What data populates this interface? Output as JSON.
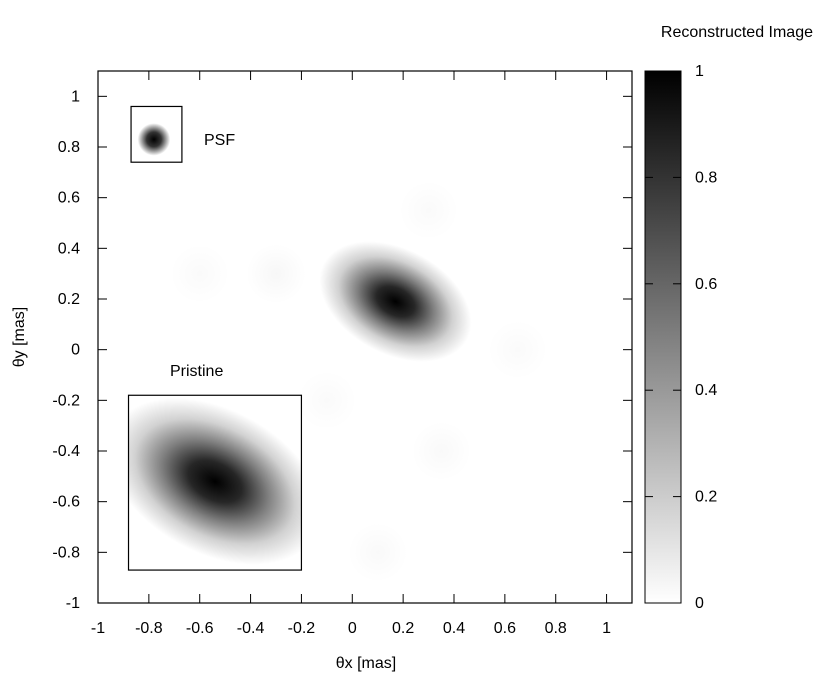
{
  "chart_data": {
    "type": "heatmap",
    "title": "Reconstructed Image",
    "xlabel": "θx [mas]",
    "ylabel": "θy [mas]",
    "xlim": [
      -1,
      1.1
    ],
    "ylim": [
      -1,
      1.1
    ],
    "x_ticks": [
      -1,
      -0.8,
      -0.6,
      -0.4,
      -0.2,
      0,
      0.2,
      0.4,
      0.6,
      0.8,
      1
    ],
    "y_ticks": [
      -1,
      -0.8,
      -0.6,
      -0.4,
      -0.2,
      0,
      0.2,
      0.4,
      0.6,
      0.8,
      1
    ],
    "colorbar": {
      "range": [
        0,
        1
      ],
      "ticks": [
        0,
        0.2,
        0.4,
        0.6,
        0.8,
        1
      ],
      "low_color": "#ffffff",
      "high_color": "#000000"
    },
    "colormap": "grayscale-inverted",
    "grid": false,
    "main_source": {
      "center": [
        0.17,
        0.19
      ],
      "sigma_major": 0.1,
      "sigma_minor": 0.065,
      "angle_deg": -28,
      "peak": 1
    },
    "faint_features": [
      {
        "center": [
          -0.6,
          0.3
        ],
        "peak": 0.02
      },
      {
        "center": [
          -0.3,
          0.3
        ],
        "peak": 0.03
      },
      {
        "center": [
          0.3,
          0.55
        ],
        "peak": 0.02
      },
      {
        "center": [
          0.35,
          -0.4
        ],
        "peak": 0.025
      },
      {
        "center": [
          0.65,
          0.0
        ],
        "peak": 0.02
      },
      {
        "center": [
          0.1,
          -0.8
        ],
        "peak": 0.025
      },
      {
        "center": [
          -0.1,
          -0.2
        ],
        "peak": 0.02
      }
    ],
    "insets": [
      {
        "label": "PSF",
        "box_x": [
          -0.87,
          -0.67
        ],
        "box_y": [
          0.74,
          0.96
        ],
        "source_center": [
          -0.78,
          0.83
        ],
        "sigma": 0.02
      },
      {
        "label": "Pristine",
        "box_x": [
          -0.88,
          -0.2
        ],
        "box_y": [
          -0.87,
          -0.18
        ],
        "source_center": [
          -0.54,
          -0.52
        ],
        "sigma_major": 0.15,
        "sigma_minor": 0.095,
        "angle_deg": -28,
        "peak": 1
      }
    ]
  }
}
